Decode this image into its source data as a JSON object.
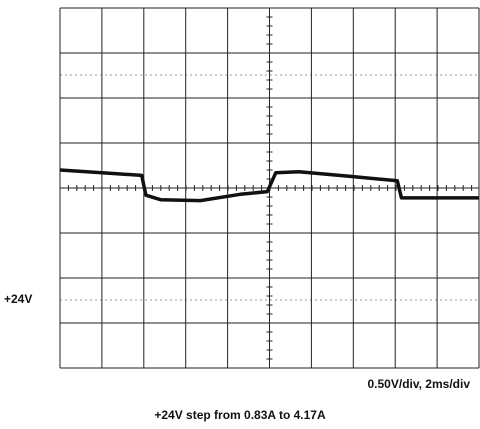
{
  "chart_data": {
    "type": "line",
    "scale_label": "0.50V/div, 2ms/div",
    "marker_label": "+24V",
    "caption": "+24V step from 0.83A to 4.17A",
    "x": [
      0,
      2,
      3.9,
      4.1,
      4.8,
      6.7,
      8.6,
      9.9,
      10.3,
      11.4,
      13.8,
      16.1,
      16.3,
      20
    ],
    "series": [
      {
        "color": "#111111",
        "values": [
          0.2,
          0.17,
          0.14,
          -0.08,
          -0.13,
          -0.14,
          -0.07,
          -0.04,
          0.17,
          0.18,
          0.13,
          0.08,
          -0.11,
          -0.11
        ]
      }
    ],
    "xlim": [
      0,
      20
    ],
    "ylim": [
      -2,
      2
    ],
    "xticks": [
      0,
      2,
      4,
      6,
      8,
      10,
      12,
      14,
      16,
      18,
      20
    ],
    "yticks": [
      -2,
      -1.5,
      -1,
      -0.5,
      0,
      0.5,
      1,
      1.5,
      2
    ],
    "grid": true
  }
}
